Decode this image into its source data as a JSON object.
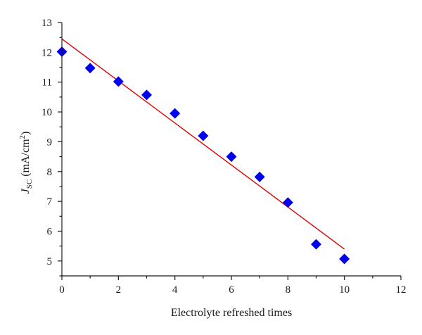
{
  "chart_data": {
    "type": "scatter",
    "title": "",
    "xlabel": "Electrolyte refreshed times",
    "ylabel": {
      "symbol": "J",
      "subscript": "SC",
      "units_prefix": " (mA/cm",
      "units_power": "2",
      "units_suffix": ")"
    },
    "xlim": [
      0,
      12
    ],
    "ylim": [
      4.5,
      13
    ],
    "xticks": [
      0,
      2,
      4,
      6,
      8,
      10,
      12
    ],
    "yticks": [
      5,
      6,
      7,
      8,
      9,
      10,
      11,
      12,
      13
    ],
    "grid": false,
    "legend": "none",
    "series": [
      {
        "kind": "points",
        "marker": "diamond",
        "color": "#0000ee",
        "x": [
          0,
          1,
          2,
          3,
          4,
          5,
          6,
          7,
          8,
          9,
          10
        ],
        "y": [
          12.02,
          11.47,
          11.02,
          10.57,
          9.95,
          9.2,
          8.5,
          7.82,
          6.96,
          5.56,
          5.07
        ]
      },
      {
        "kind": "fit-line",
        "color": "#e00000",
        "x": [
          0,
          10
        ],
        "y": [
          12.45,
          5.4
        ]
      }
    ]
  }
}
